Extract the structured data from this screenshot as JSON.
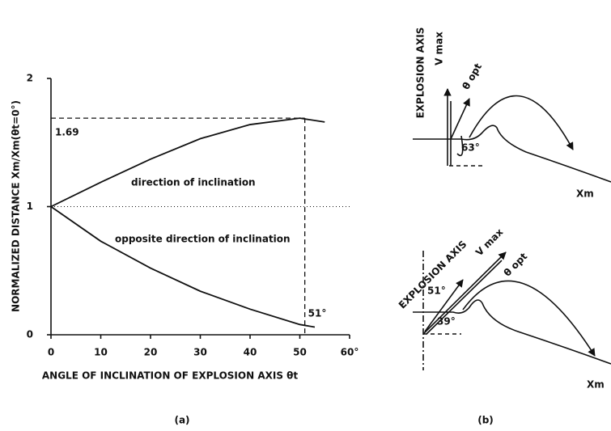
{
  "chart_data": {
    "type": "line",
    "xlabel": "ANGLE OF INCLINATION OF EXPLOSION AXIS θt",
    "ylabel": "NORMALIZED DISTANCE  Xm/Xm(θt=0°)",
    "xlim": [
      0,
      60
    ],
    "ylim": [
      0,
      2
    ],
    "xticks": [
      0,
      10,
      20,
      30,
      40,
      50,
      {
        "value": 60,
        "label": "60°"
      }
    ],
    "yticks": [
      0,
      1,
      2
    ],
    "series": [
      {
        "name": "direction of inclination",
        "color": "#111111",
        "x": [
          0,
          10,
          20,
          30,
          40,
          50,
          55
        ],
        "values": [
          1,
          1.19,
          1.37,
          1.53,
          1.64,
          1.69,
          1.66
        ]
      },
      {
        "name": "opposite direction of inclination",
        "color": "#111111",
        "x": [
          0,
          10,
          20,
          30,
          40,
          50,
          53
        ],
        "values": [
          1,
          0.73,
          0.52,
          0.34,
          0.2,
          0.08,
          0.06
        ]
      }
    ],
    "hline": {
      "value": 1.69,
      "label": "1.69"
    },
    "vline": {
      "value": 51,
      "label": "51°"
    },
    "baseline": 1,
    "caption": "(a)"
  },
  "diagram_b": {
    "caption": "(b)",
    "top": {
      "axis": "EXPLOSION AXIS",
      "vmax": "V max",
      "theta": "θ opt",
      "angle": "63°",
      "distance": "Xm"
    },
    "bottom": {
      "axis": "EXPLOSION AXIS",
      "vmax": "V max",
      "theta": "θ opt",
      "angle1": "51°",
      "angle2": "39°",
      "distance": "Xm"
    }
  }
}
